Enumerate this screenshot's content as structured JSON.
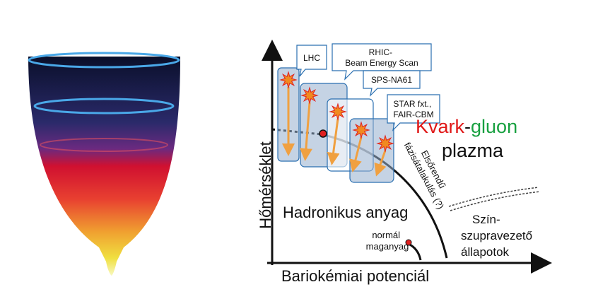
{
  "axes": {
    "y_label": "Hőmérséklet",
    "x_label": "Bariokémiai potenciál"
  },
  "experiments": [
    {
      "label": [
        "LHC"
      ]
    },
    {
      "label": [
        "RHIC-",
        "Beam Energy Scan"
      ]
    },
    {
      "label": [
        "SPS-NA61"
      ]
    },
    {
      "label": [
        "STAR fxt.,",
        "FAIR-CBM"
      ]
    }
  ],
  "qgp": {
    "line1": [
      "Kvark",
      "-",
      "gluon"
    ],
    "line2": "plazma"
  },
  "transition": [
    "Elsőrendű",
    "fázisátalakulás (?)"
  ],
  "regions": {
    "hadronic": "Hadronikus anyag",
    "color_superconducting": [
      "Szín-",
      "szupravezető",
      "állapotok"
    ],
    "nuclear_matter": [
      "normál",
      "maganyag"
    ]
  }
}
